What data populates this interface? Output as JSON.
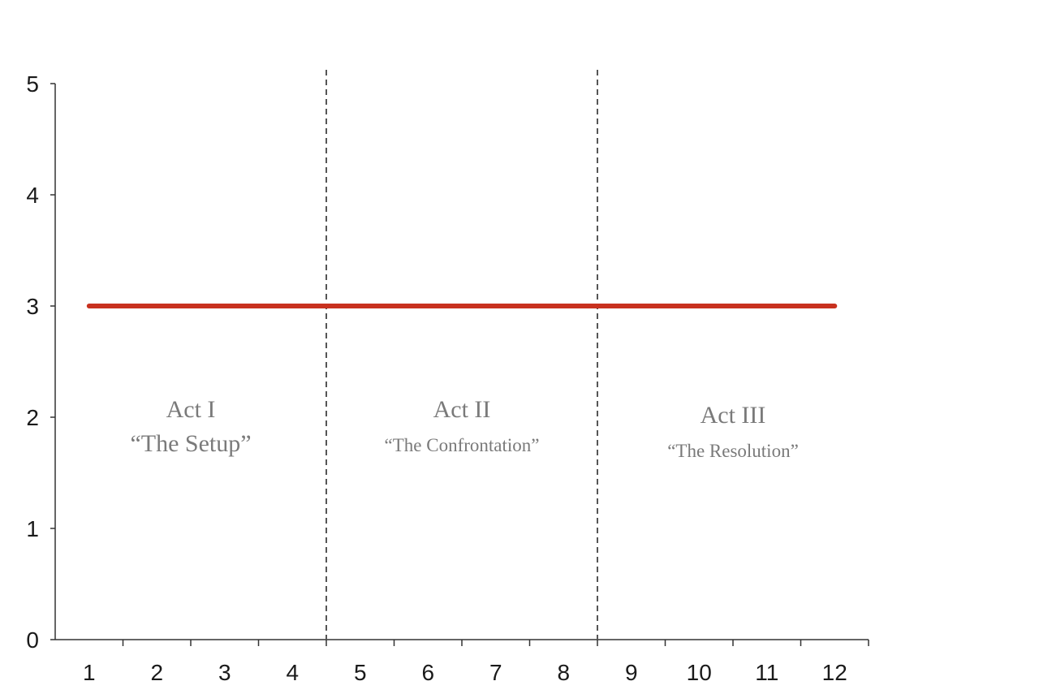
{
  "chart_data": {
    "type": "line",
    "title": "",
    "xlabel": "",
    "ylabel": "",
    "x_ticks": [
      1,
      2,
      3,
      4,
      5,
      6,
      7,
      8,
      9,
      10,
      11,
      12
    ],
    "y_ticks": [
      0,
      1,
      2,
      3,
      4,
      5
    ],
    "xlim": [
      0.5,
      12.5
    ],
    "ylim": [
      0,
      5
    ],
    "grid": false,
    "series": [
      {
        "x": [
          1,
          12
        ],
        "y": [
          3,
          3
        ],
        "color": "#c8311f"
      }
    ],
    "dividers": [
      {
        "x": 4.5,
        "style": "dashed",
        "color": "#555555"
      },
      {
        "x": 8.5,
        "style": "dashed",
        "color": "#555555"
      }
    ],
    "annotations": [
      {
        "title": "Act I",
        "subtitle": "“The Setup”",
        "x": 2.5,
        "y": 2.0
      },
      {
        "title": "Act II",
        "subtitle": "“The Confrontation”",
        "x": 6.5,
        "y": 2.0
      },
      {
        "title": "Act III",
        "subtitle": "“The Resolution”",
        "x": 10.5,
        "y": 1.95
      }
    ]
  }
}
